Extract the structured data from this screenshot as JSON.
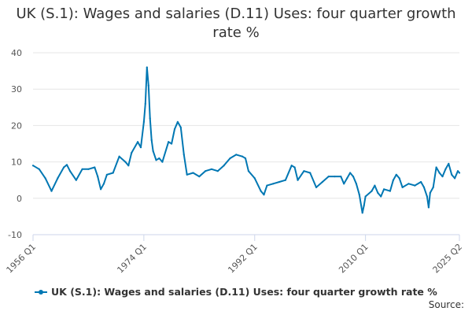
{
  "page": {
    "title": "UK (S.1): Wages and salaries (D.11) Uses: four quarter growth rate %",
    "source_label": "Source:"
  },
  "chart_data": {
    "type": "line",
    "title": "UK (S.1): Wages and salaries (D.11) Uses: four quarter growth rate %",
    "xlabel": "",
    "ylabel": "",
    "ylim": [
      -10,
      40
    ],
    "yticks": [
      -10,
      0,
      10,
      20,
      30,
      40
    ],
    "xrange": [
      1956.0,
      2025.25
    ],
    "xtick_labels": [
      {
        "label": "1956 Q1",
        "t": 1956.0
      },
      {
        "label": "1974 Q1",
        "t": 1974.0
      },
      {
        "label": "1992 Q1",
        "t": 1992.0
      },
      {
        "label": "2010 Q1",
        "t": 2010.0
      },
      {
        "label": "2025 Q2",
        "t": 2025.25
      }
    ],
    "series": [
      {
        "name": "UK (S.1): Wages and salaries (D.11) Uses: four quarter growth rate %",
        "color": "#0077b3",
        "frequency": "quarterly",
        "start": "1956 Q1",
        "points": [
          [
            1956.0,
            9.0
          ],
          [
            1957.0,
            8.0
          ],
          [
            1958.0,
            5.5
          ],
          [
            1959.0,
            2.0
          ],
          [
            1960.0,
            5.5
          ],
          [
            1961.0,
            8.5
          ],
          [
            1961.5,
            9.2
          ],
          [
            1962.0,
            7.5
          ],
          [
            1963.0,
            5.0
          ],
          [
            1964.0,
            8.0
          ],
          [
            1965.0,
            8.0
          ],
          [
            1966.0,
            8.5
          ],
          [
            1966.5,
            6.0
          ],
          [
            1967.0,
            2.5
          ],
          [
            1967.5,
            4.0
          ],
          [
            1968.0,
            6.5
          ],
          [
            1969.0,
            7.0
          ],
          [
            1970.0,
            11.5
          ],
          [
            1971.0,
            10.0
          ],
          [
            1971.5,
            9.0
          ],
          [
            1972.0,
            12.5
          ],
          [
            1973.0,
            15.5
          ],
          [
            1973.5,
            14.0
          ],
          [
            1974.0,
            21.0
          ],
          [
            1974.25,
            26.0
          ],
          [
            1974.5,
            36.0
          ],
          [
            1974.75,
            31.0
          ],
          [
            1975.0,
            22.0
          ],
          [
            1975.25,
            16.0
          ],
          [
            1975.5,
            13.0
          ],
          [
            1976.0,
            10.5
          ],
          [
            1976.5,
            11.0
          ],
          [
            1977.0,
            10.0
          ],
          [
            1978.0,
            15.5
          ],
          [
            1978.5,
            15.0
          ],
          [
            1979.0,
            19.0
          ],
          [
            1979.5,
            21.0
          ],
          [
            1980.0,
            19.5
          ],
          [
            1980.5,
            12.0
          ],
          [
            1981.0,
            6.5
          ],
          [
            1982.0,
            7.0
          ],
          [
            1983.0,
            6.0
          ],
          [
            1984.0,
            7.5
          ],
          [
            1985.0,
            8.0
          ],
          [
            1986.0,
            7.5
          ],
          [
            1987.0,
            9.0
          ],
          [
            1988.0,
            11.0
          ],
          [
            1989.0,
            12.0
          ],
          [
            1990.0,
            11.5
          ],
          [
            1990.5,
            11.0
          ],
          [
            1991.0,
            7.5
          ],
          [
            1992.0,
            5.5
          ],
          [
            1993.0,
            2.0
          ],
          [
            1993.5,
            1.0
          ],
          [
            1994.0,
            3.5
          ],
          [
            1995.0,
            4.0
          ],
          [
            1996.0,
            4.5
          ],
          [
            1997.0,
            5.0
          ],
          [
            1998.0,
            9.0
          ],
          [
            1998.5,
            8.5
          ],
          [
            1999.0,
            5.0
          ],
          [
            2000.0,
            7.5
          ],
          [
            2001.0,
            7.0
          ],
          [
            2002.0,
            3.0
          ],
          [
            2003.0,
            4.5
          ],
          [
            2004.0,
            6.0
          ],
          [
            2005.0,
            6.0
          ],
          [
            2006.0,
            6.0
          ],
          [
            2006.5,
            4.0
          ],
          [
            2007.0,
            5.5
          ],
          [
            2007.5,
            7.0
          ],
          [
            2008.0,
            6.0
          ],
          [
            2008.5,
            4.0
          ],
          [
            2009.0,
            1.0
          ],
          [
            2009.5,
            -4.0
          ],
          [
            2009.75,
            -2.0
          ],
          [
            2010.0,
            0.5
          ],
          [
            2011.0,
            2.0
          ],
          [
            2011.5,
            3.5
          ],
          [
            2012.0,
            1.5
          ],
          [
            2012.5,
            0.5
          ],
          [
            2013.0,
            2.5
          ],
          [
            2014.0,
            2.0
          ],
          [
            2014.5,
            5.0
          ],
          [
            2015.0,
            6.5
          ],
          [
            2015.5,
            5.5
          ],
          [
            2016.0,
            3.0
          ],
          [
            2017.0,
            4.0
          ],
          [
            2018.0,
            3.5
          ],
          [
            2019.0,
            4.5
          ],
          [
            2019.5,
            3.0
          ],
          [
            2020.0,
            0.5
          ],
          [
            2020.25,
            -2.5
          ],
          [
            2020.5,
            1.5
          ],
          [
            2021.0,
            3.0
          ],
          [
            2021.5,
            8.5
          ],
          [
            2022.0,
            7.0
          ],
          [
            2022.5,
            6.0
          ],
          [
            2023.0,
            8.0
          ],
          [
            2023.5,
            9.5
          ],
          [
            2024.0,
            6.5
          ],
          [
            2024.5,
            5.5
          ],
          [
            2025.0,
            7.5
          ],
          [
            2025.25,
            7.0
          ]
        ]
      }
    ]
  }
}
